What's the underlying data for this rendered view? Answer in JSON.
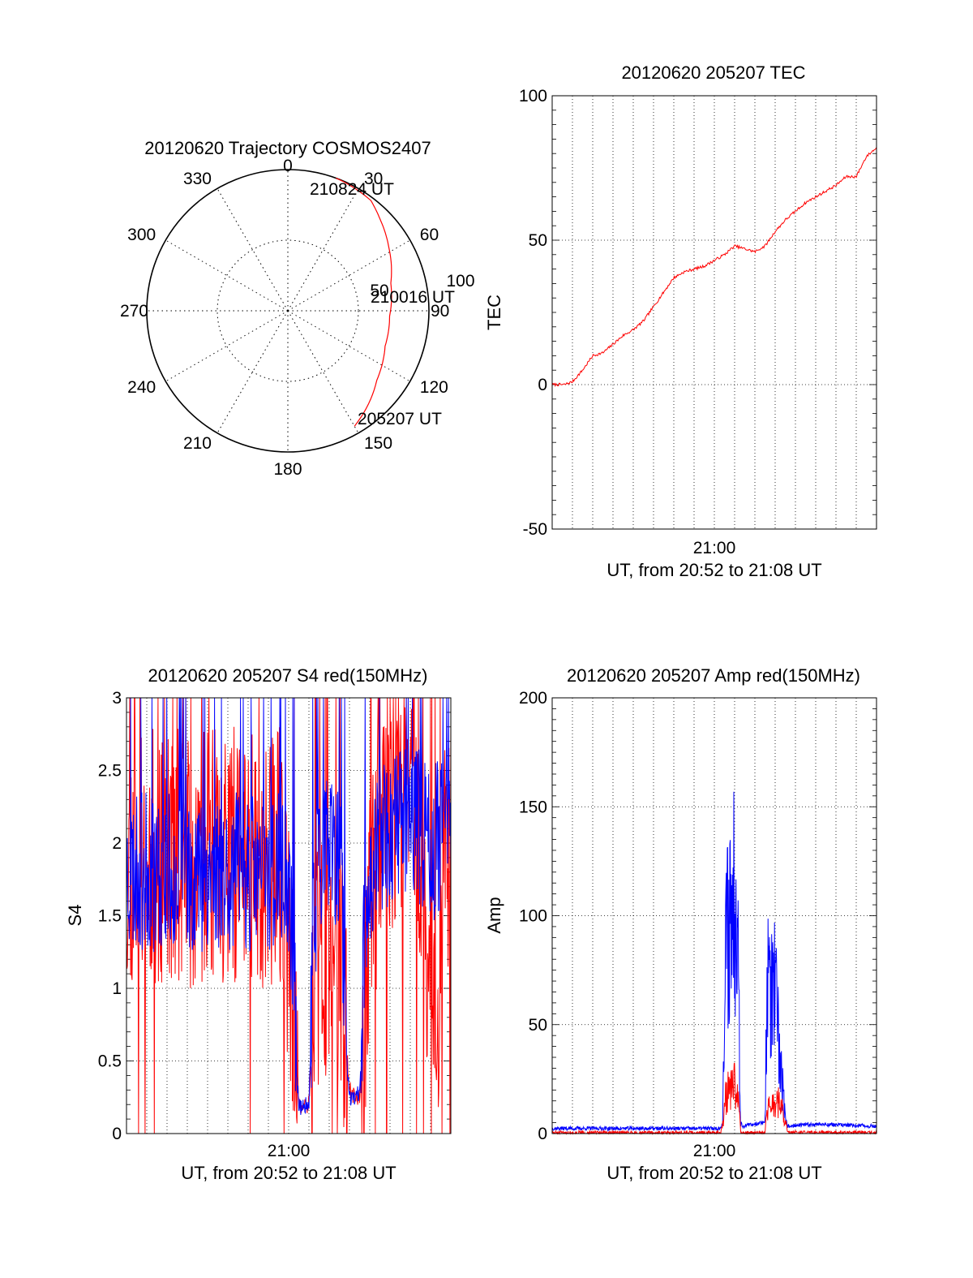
{
  "chart_data": [
    {
      "type": "polar-trajectory",
      "title": "20120620 Trajectory COSMOS2407",
      "azimuth_ticks": [
        "0",
        "30",
        "60",
        "90",
        "120",
        "150",
        "180",
        "210",
        "240",
        "270",
        "300",
        "330"
      ],
      "radial_ticks": [
        "50",
        "100"
      ],
      "point_labels": [
        "210824 UT",
        "210016 UT",
        "205207 UT"
      ],
      "trajectory": {
        "color": "#ff0000",
        "points": [
          {
            "az": 150,
            "zen": 85,
            "label": "205207 UT"
          },
          {
            "az": 128,
            "zen": 72
          },
          {
            "az": 110,
            "zen": 66
          },
          {
            "az": 93,
            "zen": 65,
            "label": "210016 UT"
          },
          {
            "az": 75,
            "zen": 68
          },
          {
            "az": 58,
            "zen": 76
          },
          {
            "az": 45,
            "zen": 83
          },
          {
            "az": 37,
            "zen": 88
          },
          {
            "az": 20,
            "zen": 90,
            "label": "210824 UT"
          }
        ]
      }
    },
    {
      "type": "line",
      "title": "20120620 205207 TEC",
      "ylabel": "TEC",
      "xlabel": "UT, from 20:52 to 21:08 UT",
      "xtick_label": "21:00",
      "ylim": [
        -50,
        100
      ],
      "yticks": [
        "-50",
        "0",
        "50",
        "100"
      ],
      "grid": true,
      "series": [
        {
          "color": "#ff0000",
          "noise": 0.6,
          "x_min": [
            0,
            0.6,
            1,
            1.5,
            2,
            2.5,
            3,
            3.5,
            4,
            4.5,
            5,
            5.5,
            6,
            6.5,
            7,
            7.5,
            8,
            8.5,
            9,
            9.5,
            10,
            10.5,
            11,
            11.5,
            12,
            12.5,
            13,
            13.5,
            14,
            14.5,
            15,
            15.5,
            16
          ],
          "values": [
            0,
            0,
            1,
            5,
            10,
            11,
            14,
            17,
            19,
            22,
            27,
            32,
            37,
            39,
            40,
            41,
            43,
            45,
            48,
            47,
            46,
            48,
            53,
            57,
            60,
            63,
            65,
            67,
            69,
            72,
            72,
            79,
            82
          ]
        }
      ]
    },
    {
      "type": "line",
      "title": "20120620 205207 S4 red(150MHz)",
      "ylabel": "S4",
      "xlabel": "UT, from 20:52 to 21:08 UT",
      "xtick_label": "21:00",
      "ylim": [
        0,
        3
      ],
      "yticks": [
        "0",
        "0.5",
        "1",
        "1.5",
        "2",
        "2.5",
        "3"
      ],
      "grid": true,
      "series": [
        {
          "color": "#ff0000",
          "seed": 11,
          "noise": 0.9,
          "drops": 0.03,
          "x_min": [
            0,
            7.6,
            8.0,
            8.4,
            8.5,
            8.6,
            9.0,
            9.5,
            10.0,
            10.6,
            11.0,
            11.3,
            11.5,
            12.0,
            12.6,
            13.0,
            13.8,
            14.2,
            14.6,
            15.0,
            15.3,
            15.6,
            16.0
          ],
          "values": [
            1.9,
            1.9,
            1.2,
            0.8,
            0.2,
            0.18,
            0.2,
            1.3,
            1.2,
            1.1,
            0.3,
            0.25,
            0.25,
            1.6,
            2.0,
            2.2,
            2.4,
            2.5,
            1.8,
            0.8,
            0.4,
            1.6,
            2.2
          ]
        },
        {
          "color": "#0000ff",
          "seed": 23,
          "noise": 0.55,
          "drops": 0,
          "x_min": [
            0,
            7.6,
            8.2,
            8.4,
            8.5,
            8.6,
            9.0,
            9.2,
            9.5,
            10.0,
            10.6,
            10.8,
            11.0,
            11.3,
            11.5,
            11.8,
            12.0,
            12.6,
            13.0,
            14.0,
            15.0,
            16.0
          ],
          "values": [
            1.8,
            1.8,
            1.4,
            0.4,
            0.2,
            0.18,
            0.2,
            1.3,
            2.0,
            1.9,
            1.8,
            0.6,
            0.25,
            0.25,
            0.28,
            1.6,
            1.8,
            2.0,
            2.1,
            2.2,
            2.0,
            2.1
          ]
        }
      ]
    },
    {
      "type": "line",
      "title": "20120620 205207 Amp red(150MHz)",
      "ylabel": "Amp",
      "xlabel": "UT, from 20:52 to 21:08 UT",
      "xtick_label": "21:00",
      "ylim": [
        0,
        200
      ],
      "yticks": [
        "0",
        "50",
        "100",
        "150",
        "200"
      ],
      "grid": true,
      "series": [
        {
          "color": "#0000ff",
          "seed": 37,
          "noise": 0.35,
          "x_min": [
            0,
            8.3,
            8.4,
            8.6,
            9.0,
            9.1,
            9.2,
            9.3,
            9.4,
            10.5,
            10.6,
            11.0,
            11.2,
            11.5,
            11.6,
            13.0,
            16.0
          ],
          "values": [
            2,
            2,
            5,
            120,
            140,
            170,
            90,
            5,
            3,
            5,
            90,
            80,
            50,
            8,
            3,
            4,
            3
          ]
        },
        {
          "color": "#ff0000",
          "seed": 51,
          "noise": 0.4,
          "x_min": [
            0,
            8.3,
            8.4,
            8.6,
            9.0,
            9.2,
            9.3,
            10.5,
            10.6,
            11.2,
            11.5,
            11.6,
            16.0
          ],
          "values": [
            0,
            0,
            3,
            25,
            28,
            20,
            0,
            0,
            15,
            18,
            8,
            0,
            0
          ]
        }
      ]
    }
  ]
}
